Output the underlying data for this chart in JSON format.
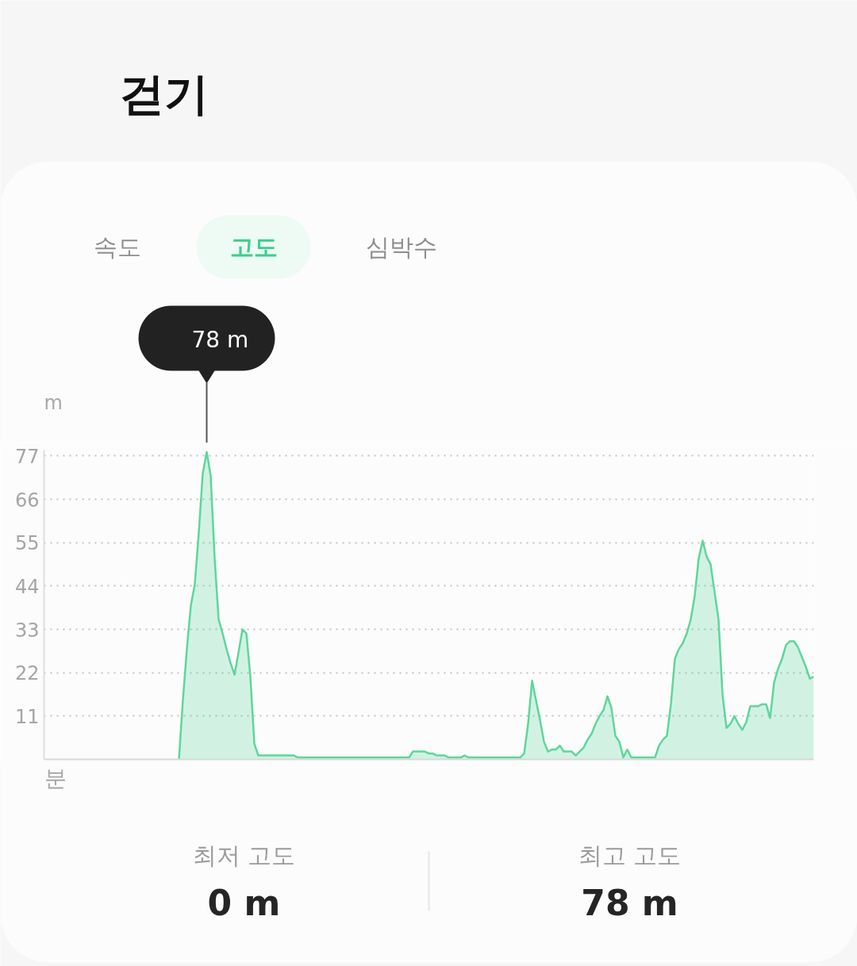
{
  "chart_data": {
    "type": "area",
    "title": "걷기",
    "xlabel": "분",
    "ylabel": "m",
    "categories": [
      null,
      null,
      null,
      null,
      null,
      null,
      null,
      null,
      null,
      null,
      null,
      null,
      null,
      null,
      null,
      null,
      null,
      null,
      null,
      null,
      null,
      null,
      null,
      null,
      null,
      null,
      null,
      null,
      null,
      null,
      null,
      null,
      null,
      null,
      null,
      null,
      null,
      null,
      null,
      null,
      null,
      null,
      null,
      null,
      null,
      null,
      null,
      null,
      null,
      null,
      null,
      null,
      null,
      null,
      null,
      null,
      null,
      null,
      null,
      null,
      null,
      null,
      null,
      null,
      null,
      null,
      null,
      null,
      null,
      null,
      null,
      null,
      null,
      null,
      null,
      null,
      null,
      null,
      null,
      null,
      null,
      null,
      null,
      null,
      null,
      null,
      null,
      null,
      null,
      null,
      null,
      null,
      null,
      null,
      null,
      null,
      null,
      null,
      null,
      null,
      null,
      null,
      null,
      null,
      null,
      null,
      null,
      null,
      null,
      null,
      null,
      null,
      null,
      null,
      null,
      null,
      null,
      null,
      null,
      null,
      null,
      null,
      null,
      null,
      null,
      null,
      null,
      null,
      null,
      null,
      null,
      null,
      null,
      null,
      null,
      null,
      null,
      null,
      null,
      null,
      null,
      null,
      null,
      null,
      null,
      null,
      null,
      null,
      null,
      null,
      null,
      null,
      null,
      null,
      null,
      null,
      null,
      null,
      null,
      null,
      null
    ],
    "series": [
      {
        "color": "#5ed69c",
        "values": [
          0,
          15,
          28,
          39,
          44.5,
          57.5,
          72.5,
          78,
          72,
          51,
          35.5,
          32,
          28,
          24.5,
          21.5,
          27,
          33,
          32,
          21,
          4,
          1,
          1,
          1,
          1,
          1,
          1,
          1,
          1,
          1,
          1,
          0.5,
          0.5,
          0.5,
          0.5,
          0.5,
          0.5,
          0.5,
          0.5,
          0.5,
          0.5,
          0.5,
          0.5,
          0.5,
          0.5,
          0.5,
          0.5,
          0.5,
          0.5,
          0.5,
          0.5,
          0.5,
          0.5,
          0.5,
          0.5,
          0.5,
          0.5,
          0.5,
          0.5,
          0.5,
          2,
          2,
          2,
          2,
          1.5,
          1.5,
          1,
          1,
          1,
          0.5,
          0.5,
          0.5,
          0.5,
          1,
          0.5,
          0.5,
          0.5,
          0.5,
          0.5,
          0.5,
          0.5,
          0.5,
          0.5,
          0.5,
          0.5,
          0.5,
          0.5,
          0.5,
          1.5,
          9,
          20,
          15,
          10,
          4.5,
          2,
          2.5,
          2.5,
          3.5,
          2,
          2,
          2,
          1,
          2,
          3,
          5,
          6.5,
          9,
          11,
          12.5,
          16,
          13,
          6,
          4.5,
          0.5,
          2.5,
          0.5,
          0.5,
          0.5,
          0.5,
          0.5,
          0.5,
          0.5,
          3.5,
          5,
          6,
          14,
          25.5,
          28,
          29.5,
          32,
          35.5,
          41.5,
          51,
          55.5,
          51.5,
          49.5,
          42.5,
          35.5,
          16.5,
          8,
          9,
          11,
          9,
          7.5,
          9.5,
          13.5,
          13.5,
          13.5,
          14,
          14,
          10.5,
          19.5,
          23,
          25.5,
          29,
          30,
          30,
          28.5,
          26,
          23.5,
          20.5,
          21
        ]
      }
    ],
    "ylim": [
      0,
      78.5
    ],
    "yticks": [
      11,
      22,
      33,
      44,
      55,
      66,
      77
    ],
    "grid": "y",
    "tick_labels": "y",
    "annotations": [
      "속도",
      "고도",
      "심박수",
      "78 m",
      "최저 고도",
      "0 m",
      "최고 고도",
      "78 m"
    ]
  }
}
